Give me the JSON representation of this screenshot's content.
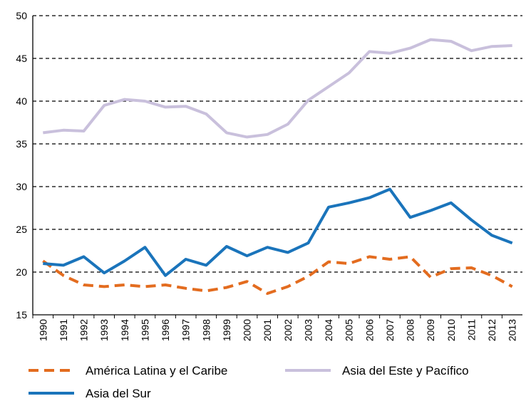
{
  "chart_data": {
    "type": "line",
    "categories": [
      "1990",
      "1991",
      "1992",
      "1993",
      "1994",
      "1995",
      "1996",
      "1997",
      "1998",
      "1999",
      "2000",
      "2001",
      "2002",
      "2003",
      "2004",
      "2005",
      "2006",
      "2007",
      "2008",
      "2009",
      "2010",
      "2011",
      "2012",
      "2013"
    ],
    "series": [
      {
        "name": "América Latina y el Caribe",
        "color": "#e36c1f",
        "dashed": true,
        "values": [
          21.3,
          19.6,
          18.5,
          18.3,
          18.5,
          18.3,
          18.5,
          18.1,
          17.8,
          18.2,
          18.9,
          17.5,
          18.3,
          19.5,
          21.2,
          21.0,
          21.8,
          21.5,
          21.8,
          19.4,
          20.4,
          20.5,
          19.6,
          18.3
        ]
      },
      {
        "name": "Asia del Este y Pacífico",
        "color": "#c9c0dc",
        "dashed": false,
        "values": [
          36.3,
          36.6,
          36.5,
          39.5,
          40.2,
          40.0,
          39.3,
          39.4,
          38.5,
          36.3,
          35.8,
          36.1,
          37.3,
          40.1,
          41.7,
          43.3,
          45.8,
          45.6,
          46.2,
          47.2,
          47.0,
          45.9,
          46.4,
          46.5
        ]
      },
      {
        "name": "Asia del Sur",
        "color": "#1a74bb",
        "dashed": false,
        "values": [
          21.0,
          20.8,
          21.8,
          19.9,
          21.3,
          22.9,
          19.6,
          21.5,
          20.8,
          23.0,
          21.9,
          22.9,
          22.3,
          23.4,
          27.6,
          28.1,
          28.7,
          29.7,
          26.4,
          27.2,
          28.1,
          26.1,
          24.3,
          23.4
        ]
      }
    ],
    "ylim": [
      15,
      50
    ],
    "yticks": [
      15,
      20,
      25,
      30,
      35,
      40,
      45,
      50
    ],
    "grid": true,
    "legend": "bottom"
  }
}
